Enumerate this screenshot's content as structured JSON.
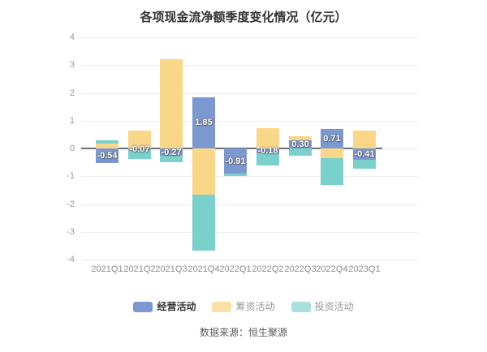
{
  "title": "各项现金流净额季度变化情况（亿元）",
  "source_text": "数据来源：恒生聚源",
  "chart_data": {
    "type": "bar",
    "stacked": true,
    "title": "各项现金流净额季度变化情况（亿元）",
    "value_unit": "亿元",
    "categories": [
      "2021Q1",
      "2021Q2",
      "2021Q3",
      "2021Q4",
      "2022Q1",
      "2022Q2",
      "2022Q3",
      "2022Q4",
      "2023Q1"
    ],
    "series": [
      {
        "name": "经营活动",
        "color": "#7b99d0",
        "values": [
          -0.54,
          -0.07,
          -0.27,
          1.85,
          -0.91,
          -0.18,
          0.3,
          0.71,
          -0.41
        ]
      },
      {
        "name": "筹资活动",
        "color": "#fad689",
        "values": [
          0.17,
          0.63,
          3.2,
          -1.66,
          0,
          0.73,
          0.15,
          -0.36,
          0.65
        ]
      },
      {
        "name": "投资活动",
        "color": "#7ad0cb",
        "values": [
          0.12,
          -0.31,
          -0.23,
          -2.0,
          -0.08,
          -0.45,
          -0.26,
          -0.95,
          -0.33
        ]
      }
    ],
    "data_labels": {
      "labeled_series": "经营活动",
      "values": [
        "-0.54",
        "-0.07",
        "-0.27",
        "1.85",
        "-0.91",
        "-0.18",
        "0.30",
        "0.71",
        "-0.41"
      ]
    },
    "ylim": [
      -4,
      4
    ],
    "yticks": [
      4,
      3,
      2,
      1,
      0,
      -1,
      -2,
      -3,
      -4
    ],
    "grid": true,
    "legend_position": "bottom"
  },
  "legend": {
    "items": [
      {
        "label": "经营活动",
        "swatch_color": "#7b99d0",
        "text_color": "#333333"
      },
      {
        "label": "筹资活动",
        "swatch_color": "#fbe0a6",
        "text_color": "#999999"
      },
      {
        "label": "投资活动",
        "swatch_color": "#a9dfdc",
        "text_color": "#999999"
      }
    ]
  }
}
